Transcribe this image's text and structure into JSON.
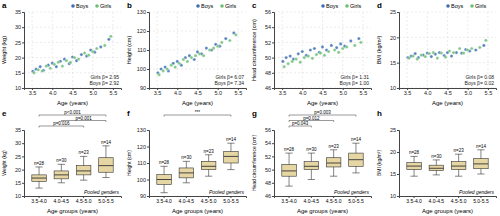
{
  "chart_data": [
    {
      "type": "scatter",
      "title": "a",
      "x_label": "Age (years)",
      "y_label": "Weight (kg)",
      "xlim": [
        3.3,
        5.7
      ],
      "xticks": [
        3.5,
        {
          "value": 4,
          "label": "4.0"
        },
        4.5,
        {
          "value": 5,
          "label": "5.0"
        },
        5.5
      ],
      "ylim": [
        10,
        35
      ],
      "yticks": [
        10,
        15,
        20,
        25,
        30,
        35
      ],
      "grid": true,
      "legend": "top-right",
      "marker": "circle",
      "annotations": [
        "Girls β= 2.95",
        "Boys β= 2.92"
      ],
      "series": [
        {
          "name": "Boys",
          "color": "#3d6fb6",
          "x": [
            3.52,
            3.6,
            3.7,
            3.78,
            3.9,
            4.0,
            4.1,
            4.2,
            4.3,
            4.42,
            4.5,
            4.6,
            4.72,
            4.85,
            4.95,
            5.05,
            5.2,
            5.4
          ],
          "values": [
            15.5,
            16.2,
            17,
            15.8,
            17.5,
            18.2,
            17,
            18.8,
            19.5,
            18,
            20.2,
            19,
            21,
            20.5,
            22.5,
            21.8,
            23.5,
            26
          ]
        },
        {
          "name": "Girls",
          "color": "#6cbf73",
          "x": [
            3.55,
            3.65,
            3.75,
            3.85,
            3.95,
            4.05,
            4.15,
            4.25,
            4.35,
            4.45,
            4.55,
            4.65,
            4.8,
            4.9,
            5.0,
            5.1,
            5.3,
            5.45
          ],
          "values": [
            15,
            16,
            15.6,
            17.2,
            16.5,
            17.8,
            18.5,
            17.2,
            19,
            18.4,
            20,
            19.5,
            21.5,
            20.8,
            22,
            23,
            24,
            27
          ]
        }
      ]
    },
    {
      "type": "scatter",
      "title": "b",
      "x_label": "Age (years)",
      "y_label": "Height (cm)",
      "xlim": [
        3.3,
        5.7
      ],
      "xticks": [
        3.5,
        {
          "value": 4,
          "label": "4.0"
        },
        4.5,
        {
          "value": 5,
          "label": "5.0"
        },
        5.5
      ],
      "ylim": [
        90,
        130
      ],
      "yticks": [
        90,
        100,
        110,
        120,
        130
      ],
      "grid": true,
      "legend": "top-right",
      "marker": "circle",
      "annotations": [
        "Girls β= 6.07",
        "Boys β= 7.34"
      ],
      "series": [
        {
          "name": "Boys",
          "color": "#3d6fb6",
          "x": [
            3.52,
            3.6,
            3.7,
            3.78,
            3.9,
            4.0,
            4.1,
            4.2,
            4.3,
            4.42,
            4.5,
            4.6,
            4.72,
            4.85,
            4.95,
            5.05,
            5.2,
            5.4
          ],
          "values": [
            98,
            100,
            101,
            99,
            103,
            104,
            102,
            106,
            107,
            105,
            109,
            108,
            111,
            110,
            113,
            112,
            116,
            119
          ]
        },
        {
          "name": "Girls",
          "color": "#6cbf73",
          "x": [
            3.55,
            3.65,
            3.75,
            3.85,
            3.95,
            4.05,
            4.15,
            4.25,
            4.35,
            4.45,
            4.55,
            4.65,
            4.8,
            4.9,
            5.0,
            5.1,
            5.3,
            5.45
          ],
          "values": [
            97,
            99,
            100,
            102,
            101,
            103,
            105,
            104,
            106,
            107,
            108,
            107,
            110,
            111,
            112,
            114,
            115,
            118
          ]
        }
      ]
    },
    {
      "type": "scatter",
      "title": "c",
      "x_label": "Age (years)",
      "y_label": "Head circumference (cm)",
      "xlim": [
        3.3,
        5.7
      ],
      "xticks": [
        3.5,
        {
          "value": 4,
          "label": "4.0"
        },
        4.5,
        {
          "value": 5,
          "label": "5.0"
        },
        5.5
      ],
      "ylim": [
        46,
        56
      ],
      "yticks": [
        46,
        48,
        50,
        52,
        54,
        56
      ],
      "grid": true,
      "legend": "top-right",
      "marker": "circle",
      "annotations": [
        "Girls β= 1.31",
        "Boys β= 1.00"
      ],
      "series": [
        {
          "name": "Boys",
          "color": "#3d6fb6",
          "x": [
            3.52,
            3.6,
            3.7,
            3.78,
            3.9,
            4.0,
            4.1,
            4.2,
            4.3,
            4.42,
            4.5,
            4.6,
            4.72,
            4.85,
            4.95,
            5.05,
            5.2,
            5.4
          ],
          "values": [
            49.5,
            50,
            50.2,
            49.8,
            50.5,
            50.8,
            50.3,
            51,
            51.2,
            50.7,
            51.4,
            51,
            51.6,
            51.3,
            51.8,
            51.5,
            52.2,
            52.5
          ]
        },
        {
          "name": "Girls",
          "color": "#6cbf73",
          "x": [
            3.55,
            3.65,
            3.75,
            3.85,
            3.95,
            4.05,
            4.15,
            4.25,
            4.35,
            4.45,
            4.55,
            4.65,
            4.8,
            4.9,
            5.0,
            5.1,
            5.3,
            5.45
          ],
          "values": [
            48.8,
            49.2,
            49.5,
            49.8,
            49.4,
            50,
            50.2,
            49.9,
            50.4,
            50.6,
            50.3,
            50.8,
            51,
            50.7,
            51.2,
            51.4,
            51.6,
            52
          ]
        }
      ]
    },
    {
      "type": "scatter",
      "title": "d",
      "x_label": "Age (years)",
      "y_label": "BMI (kg/m²)",
      "xlim": [
        3.3,
        5.7
      ],
      "xticks": [
        3.5,
        {
          "value": 4,
          "label": "4.0"
        },
        4.5,
        {
          "value": 5,
          "label": "5.0"
        },
        5.5
      ],
      "ylim": [
        10,
        25
      ],
      "yticks": [
        10,
        15,
        20,
        25
      ],
      "grid": true,
      "legend": "top-right",
      "marker": "circle",
      "annotations": [
        "Girls β= 0.08",
        "Boys β= 0.02"
      ],
      "series": [
        {
          "name": "Boys",
          "color": "#3d6fb6",
          "x": [
            3.52,
            3.6,
            3.7,
            3.78,
            3.9,
            4.0,
            4.1,
            4.2,
            4.3,
            4.42,
            4.5,
            4.6,
            4.72,
            4.85,
            4.95,
            5.05,
            5.2,
            5.4
          ],
          "values": [
            16,
            16.3,
            16.8,
            16,
            16.5,
            16.9,
            16.2,
            16.7,
            17,
            16.4,
            17,
            16.3,
            17,
            16.9,
            17.6,
            17.3,
            17.5,
            18.4
          ]
        },
        {
          "name": "Girls",
          "color": "#6cbf73",
          "x": [
            3.55,
            3.65,
            3.75,
            3.85,
            3.95,
            4.05,
            4.15,
            4.25,
            4.35,
            4.45,
            4.55,
            4.65,
            4.8,
            4.9,
            5.0,
            5.1,
            5.3,
            5.45
          ],
          "values": [
            15.9,
            16.3,
            15.7,
            16.5,
            16.2,
            16.8,
            17,
            15.9,
            16.9,
            16.1,
            17.3,
            17,
            17.8,
            16.9,
            17.5,
            17.8,
            18,
            19.4
          ]
        }
      ]
    },
    {
      "type": "box",
      "title": "e",
      "x_label": "Age groups (years)",
      "y_label": "Weight (kg)",
      "color": "#e6d6a3",
      "categories": [
        "3.5-4.0",
        "4.0-4.5",
        "4.5-5.0",
        "5.0-5.5"
      ],
      "ylim": [
        10,
        35
      ],
      "yticks": [
        10,
        15,
        20,
        25,
        30,
        35
      ],
      "annotations": [
        "Pooled genders"
      ],
      "n_labels": [
        "n=28",
        "n=30",
        "n=23",
        "n=14"
      ],
      "boxes": [
        {
          "min": 13,
          "q1": 15.5,
          "median": 16.8,
          "q3": 18,
          "max": 21
        },
        {
          "min": 15,
          "q1": 16.5,
          "median": 18,
          "q3": 19.5,
          "max": 22
        },
        {
          "min": 16,
          "q1": 18,
          "median": 19.5,
          "q3": 21.5,
          "max": 25
        },
        {
          "min": 17,
          "q1": 19,
          "median": 21.5,
          "q3": 24.5,
          "max": 29
        }
      ],
      "comparisons": [
        {
          "from": 0,
          "to": 3,
          "label": "p<0.001"
        },
        {
          "from": 1,
          "to": 3,
          "label": "p=0.001"
        },
        {
          "from": 0,
          "to": 2,
          "label": "p=0.016"
        }
      ]
    },
    {
      "type": "box",
      "title": "f",
      "x_label": "Age groups (years)",
      "y_label": "Height (cm)",
      "color": "#e6d6a3",
      "categories": [
        "3.5-4.0",
        "4.0-4.5",
        "4.5-5.0",
        "5.0-5.5"
      ],
      "ylim": [
        90,
        130
      ],
      "yticks": [
        90,
        100,
        110,
        120,
        130
      ],
      "annotations": [
        "Pooled genders"
      ],
      "n_labels": [
        "n=28",
        "n=30",
        "n=23",
        "n=14"
      ],
      "boxes": [
        {
          "min": 92,
          "q1": 97,
          "median": 100,
          "q3": 103,
          "max": 108
        },
        {
          "min": 98,
          "q1": 101,
          "median": 104,
          "q3": 107,
          "max": 111
        },
        {
          "min": 102,
          "q1": 106,
          "median": 108,
          "q3": 111,
          "max": 115
        },
        {
          "min": 106,
          "q1": 110,
          "median": 114,
          "q3": 117,
          "max": 122
        }
      ],
      "comparisons": [
        {
          "from": 0,
          "to": 3,
          "label": "***"
        }
      ]
    },
    {
      "type": "box",
      "title": "g",
      "x_label": "Age groups (years)",
      "y_label": "Head circumference (cm)",
      "color": "#e6d6a3",
      "categories": [
        "3.5-4.0",
        "4.0-4.5",
        "4.5-5.0",
        "5.0-5.5"
      ],
      "ylim": [
        46,
        56
      ],
      "yticks": [
        46,
        48,
        50,
        52,
        54,
        56
      ],
      "annotations": [
        "Pooled genders"
      ],
      "n_labels": [
        "n=28",
        "n=30",
        "n=23",
        "n=14"
      ],
      "boxes": [
        {
          "min": 47.5,
          "q1": 49,
          "median": 49.8,
          "q3": 50.8,
          "max": 52.5
        },
        {
          "min": 48.5,
          "q1": 50,
          "median": 50.5,
          "q3": 51.2,
          "max": 52.5
        },
        {
          "min": 49,
          "q1": 50.4,
          "median": 51,
          "q3": 51.8,
          "max": 53
        },
        {
          "min": 49.5,
          "q1": 50.5,
          "median": 51.5,
          "q3": 52.5,
          "max": 54
        }
      ],
      "comparisons": [
        {
          "from": 0,
          "to": 3,
          "label": "p=0.003"
        },
        {
          "from": 0,
          "to": 2,
          "label": "p=0.012"
        },
        {
          "from": 0,
          "to": 1,
          "label": "p=0.043"
        }
      ]
    },
    {
      "type": "box",
      "title": "h",
      "x_label": "Age groups (years)",
      "y_label": "BMI (kg/m²)",
      "color": "#e6d6a3",
      "categories": [
        "3.5-4.0",
        "4.0-4.5",
        "4.5-5.0",
        "5.0-5.5"
      ],
      "ylim": [
        10,
        25
      ],
      "yticks": [
        10,
        15,
        20,
        25
      ],
      "annotations": [
        "Pooled genders"
      ],
      "n_labels": [
        "n=28",
        "n=30",
        "n=23",
        "n=14"
      ],
      "boxes": [
        {
          "min": 14.5,
          "q1": 16,
          "median": 16.8,
          "q3": 17.6,
          "max": 19
        },
        {
          "min": 14.8,
          "q1": 15.8,
          "median": 16.3,
          "q3": 17,
          "max": 18.2
        },
        {
          "min": 14.5,
          "q1": 16,
          "median": 16.8,
          "q3": 17.8,
          "max": 19.5
        },
        {
          "min": 15,
          "q1": 16.2,
          "median": 17.3,
          "q3": 18.5,
          "max": 20.5
        }
      ],
      "comparisons": []
    }
  ]
}
